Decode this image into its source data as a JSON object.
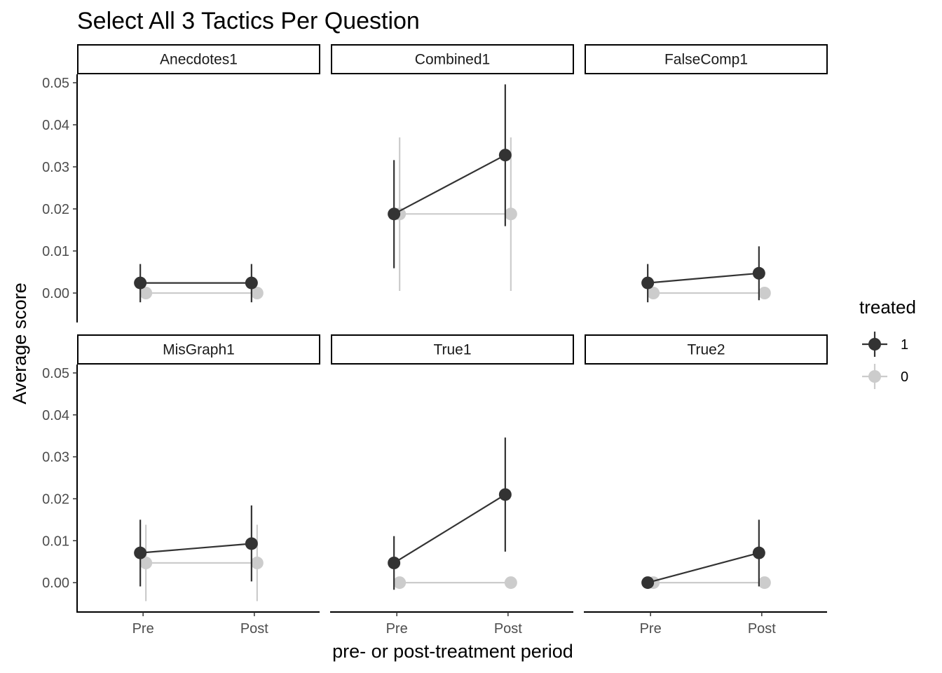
{
  "chart_data": {
    "type": "line",
    "title": "Select All 3 Tactics Per Question",
    "xlabel": "pre- or post-treatment period",
    "ylabel": "Average score",
    "categories": [
      "Pre",
      "Post"
    ],
    "ylim": [
      -0.007,
      0.052
    ],
    "yticks": [
      0.0,
      0.01,
      0.02,
      0.03,
      0.04,
      0.05
    ],
    "ytick_labels": [
      "0.00",
      "0.01",
      "0.02",
      "0.03",
      "0.04",
      "0.05"
    ],
    "grid": false,
    "legend": {
      "title": "treated",
      "position": "right",
      "entries": [
        {
          "label": "1",
          "color": "#333333"
        },
        {
          "label": "0",
          "color": "#cccccc"
        }
      ]
    },
    "panels": [
      {
        "name": "Anecdotes1",
        "series": [
          {
            "name": "1",
            "color": "#333333",
            "values": [
              0.0024,
              0.0024
            ],
            "lower": [
              -0.0022,
              -0.0022
            ],
            "upper": [
              0.0069,
              0.0069
            ]
          },
          {
            "name": "0",
            "color": "#cccccc",
            "values": [
              0.0,
              0.0
            ],
            "lower": [
              0.0,
              0.0
            ],
            "upper": [
              0.0,
              0.0
            ]
          }
        ]
      },
      {
        "name": "Combined1",
        "series": [
          {
            "name": "1",
            "color": "#333333",
            "values": [
              0.0188,
              0.0328
            ],
            "lower": [
              0.0059,
              0.0159
            ],
            "upper": [
              0.0316,
              0.0496
            ]
          },
          {
            "name": "0",
            "color": "#cccccc",
            "values": [
              0.0188,
              0.0188
            ],
            "lower": [
              0.0005,
              0.0005
            ],
            "upper": [
              0.037,
              0.037
            ]
          }
        ]
      },
      {
        "name": "FalseComp1",
        "series": [
          {
            "name": "1",
            "color": "#333333",
            "values": [
              0.0024,
              0.0047
            ],
            "lower": [
              -0.0022,
              -0.0017
            ],
            "upper": [
              0.0069,
              0.0111
            ]
          },
          {
            "name": "0",
            "color": "#cccccc",
            "values": [
              0.0,
              0.0
            ],
            "lower": [
              0.0,
              0.0
            ],
            "upper": [
              0.0,
              0.0
            ]
          }
        ]
      },
      {
        "name": "MisGraph1",
        "series": [
          {
            "name": "1",
            "color": "#333333",
            "values": [
              0.0071,
              0.0093
            ],
            "lower": [
              -0.0009,
              0.0003
            ],
            "upper": [
              0.015,
              0.0184
            ]
          },
          {
            "name": "0",
            "color": "#cccccc",
            "values": [
              0.0047,
              0.0047
            ],
            "lower": [
              -0.0044,
              -0.0044
            ],
            "upper": [
              0.0138,
              0.0138
            ]
          }
        ]
      },
      {
        "name": "True1",
        "series": [
          {
            "name": "1",
            "color": "#333333",
            "values": [
              0.0047,
              0.021
            ],
            "lower": [
              -0.0017,
              0.0074
            ],
            "upper": [
              0.0111,
              0.0346
            ]
          },
          {
            "name": "0",
            "color": "#cccccc",
            "values": [
              0.0,
              0.0
            ],
            "lower": [
              0.0,
              0.0
            ],
            "upper": [
              0.0,
              0.0
            ]
          }
        ]
      },
      {
        "name": "True2",
        "series": [
          {
            "name": "1",
            "color": "#333333",
            "values": [
              0.0,
              0.0071
            ],
            "lower": [
              0.0,
              -0.0009
            ],
            "upper": [
              0.0,
              0.015
            ]
          },
          {
            "name": "0",
            "color": "#cccccc",
            "values": [
              0.0,
              0.0
            ],
            "lower": [
              0.0,
              0.0
            ],
            "upper": [
              0.0,
              0.0
            ]
          }
        ]
      }
    ]
  }
}
